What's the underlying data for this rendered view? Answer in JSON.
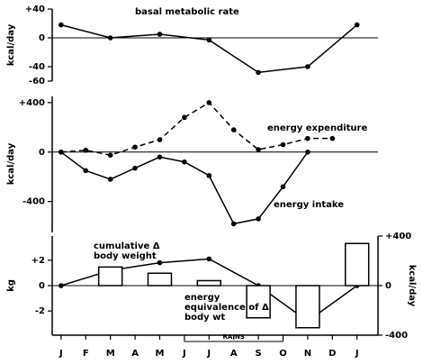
{
  "chart_data": [
    {
      "type": "line",
      "ylabel": "kcal/day",
      "xlim": [
        -0.36,
        12.85
      ],
      "ylim": [
        -60,
        40
      ],
      "yticks": [
        {
          "value": 40,
          "label": "+40"
        },
        0,
        -40,
        -60
      ],
      "series": [
        {
          "name": "basal metabolic rate",
          "color": "#000",
          "line_style": "solid",
          "x": [
            0,
            2,
            4,
            6,
            8,
            10,
            12
          ],
          "values": [
            18,
            0,
            5,
            -3,
            -48,
            -40,
            18
          ]
        }
      ]
    },
    {
      "type": "line",
      "ylabel": "kcal/day",
      "xlim": [
        -0.36,
        12.85
      ],
      "ylim": [
        -650,
        450
      ],
      "yticks": [
        {
          "value": 400,
          "label": "+400"
        },
        0,
        -400
      ],
      "series": [
        {
          "name": "energy expenditure",
          "color": "#000",
          "line_style": "dashed",
          "x": [
            0,
            1,
            2,
            3,
            4,
            5,
            6,
            7,
            8,
            9,
            10,
            11
          ],
          "values": [
            0,
            15,
            -25,
            40,
            100,
            280,
            400,
            180,
            20,
            60,
            110,
            110
          ]
        },
        {
          "name": "energy intake",
          "color": "#000",
          "line_style": "solid",
          "x": [
            0,
            1,
            2,
            3,
            4,
            5,
            6,
            7,
            8,
            9,
            10
          ],
          "values": [
            0,
            -150,
            -220,
            -130,
            -40,
            -80,
            -190,
            -580,
            -540,
            -280,
            0
          ]
        }
      ]
    },
    {
      "type": "combo",
      "ylabel": "kg",
      "y2label": "kcal/day",
      "xlim": [
        -0.36,
        12.85
      ],
      "ylim": [
        -3.9,
        3.9
      ],
      "yticks": [
        {
          "value": 2,
          "label": "+2"
        },
        0,
        -2
      ],
      "y2lim": [
        -400,
        400
      ],
      "y2ticks": [
        {
          "value": 400,
          "label": "+400"
        },
        0,
        -400
      ],
      "xticks": [
        {
          "value": 0,
          "label": "J"
        },
        {
          "value": 1,
          "label": "F"
        },
        {
          "value": 2,
          "label": "M"
        },
        {
          "value": 3,
          "label": "A"
        },
        {
          "value": 4,
          "label": "M"
        },
        {
          "value": 5,
          "label": "J"
        },
        {
          "value": 6,
          "label": "J"
        },
        {
          "value": 7,
          "label": "A"
        },
        {
          "value": 8,
          "label": "S"
        },
        {
          "value": 9,
          "label": "O"
        },
        {
          "value": 10,
          "label": "N"
        },
        {
          "value": 11,
          "label": "D"
        },
        {
          "value": 12,
          "label": "J"
        }
      ],
      "annotation": "RAINS",
      "series": [
        {
          "name": "cumulative Δ body weight",
          "type": "line",
          "color": "#000",
          "line_style": "solid",
          "x": [
            0,
            2,
            4,
            6,
            8,
            10,
            12
          ],
          "values": [
            0,
            1.2,
            1.8,
            2.1,
            0,
            -2.8,
            0
          ]
        },
        {
          "name": "energy equivalence of Δ body wt",
          "type": "bar",
          "axis": "y2",
          "color": "#000",
          "x": [
            2,
            4,
            6,
            8,
            10,
            12
          ],
          "values": [
            150,
            100,
            40,
            -260,
            -340,
            340
          ]
        }
      ]
    }
  ]
}
